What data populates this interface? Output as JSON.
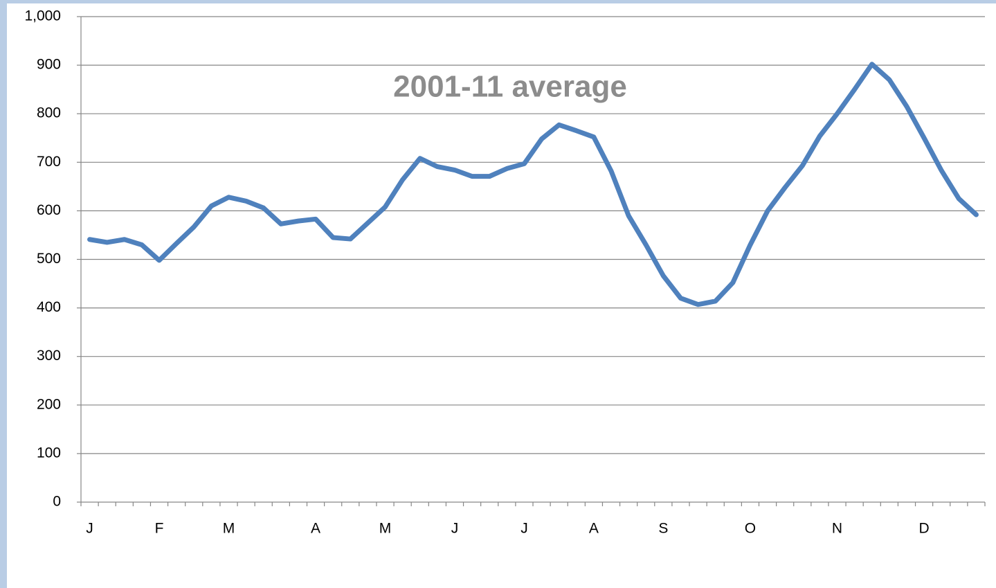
{
  "chart_data": {
    "type": "line",
    "title": "2001-11 average",
    "categories": [
      "J",
      null,
      null,
      null,
      "F",
      null,
      null,
      null,
      "M",
      null,
      null,
      null,
      null,
      "A",
      null,
      null,
      null,
      "M",
      null,
      null,
      null,
      "J",
      null,
      null,
      null,
      "J",
      null,
      null,
      null,
      "A",
      null,
      null,
      null,
      "S",
      null,
      null,
      null,
      null,
      "O",
      null,
      null,
      null,
      null,
      "N",
      null,
      null,
      null,
      null,
      "D",
      null,
      null,
      null
    ],
    "series": [
      {
        "name": "2001-11 average",
        "color": "#4f81bd",
        "values": [
          541,
          535,
          541,
          530,
          498,
          533,
          567,
          610,
          628,
          620,
          606,
          573,
          579,
          583,
          545,
          542,
          575,
          608,
          664,
          708,
          691,
          684,
          671,
          671,
          687,
          697,
          748,
          777,
          765,
          752,
          682,
          590,
          530,
          466,
          420,
          407,
          414,
          452,
          530,
          600,
          648,
          693,
          754,
          800,
          850,
          902,
          870,
          815,
          750,
          683,
          625,
          592
        ]
      }
    ],
    "ylim": [
      0,
      1000
    ],
    "yticks": [
      0,
      100,
      200,
      300,
      400,
      500,
      600,
      700,
      800,
      900,
      {
        "value": 1000,
        "label": "1,000"
      }
    ],
    "grid": true
  }
}
